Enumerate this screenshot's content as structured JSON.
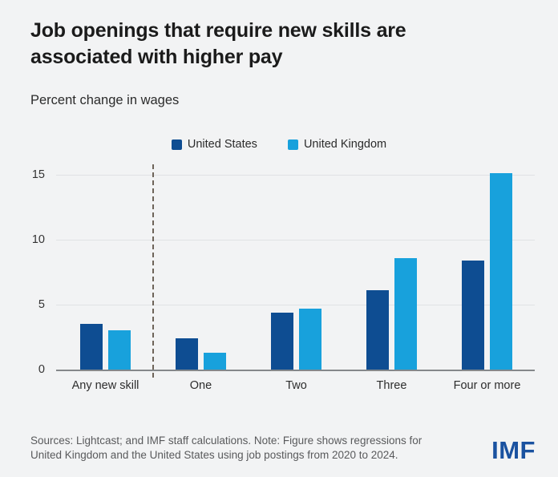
{
  "chart_data": {
    "type": "bar",
    "title": "Job openings that require new skills are associated with higher pay",
    "subtitle": "Percent change in wages",
    "categories": [
      "Any new skill",
      "One",
      "Two",
      "Three",
      "Four or more"
    ],
    "series": [
      {
        "name": "United States",
        "color": "#0e4d92",
        "values": [
          3.5,
          2.4,
          4.4,
          6.1,
          8.4
        ]
      },
      {
        "name": "United Kingdom",
        "color": "#18a1dc",
        "values": [
          3.0,
          1.3,
          4.7,
          8.6,
          15.1
        ]
      }
    ],
    "yticks": [
      0,
      5,
      10,
      15
    ],
    "ylim": [
      0,
      16.2
    ],
    "grid": "horizontal",
    "legend_position": "top-center",
    "separator": {
      "after_category_index": 0,
      "style": "dashed",
      "color": "#6e6459"
    }
  },
  "footer": {
    "source_line1": "Sources: Lightcast; and IMF staff calculations. Note: Figure shows regressions for",
    "source_line2": "United Kingdom and the United States using job postings from 2020 to 2024.",
    "logo": "IMF"
  },
  "colors": {
    "background": "#f2f3f4",
    "gridline": "#e0e2e4",
    "axis": "#85888b",
    "title_text": "#1b1b1b",
    "footer_text": "#595a5c",
    "logo_blue": "#1a52a0",
    "us_bar": "#0e4d92",
    "uk_bar": "#18a1dc"
  }
}
